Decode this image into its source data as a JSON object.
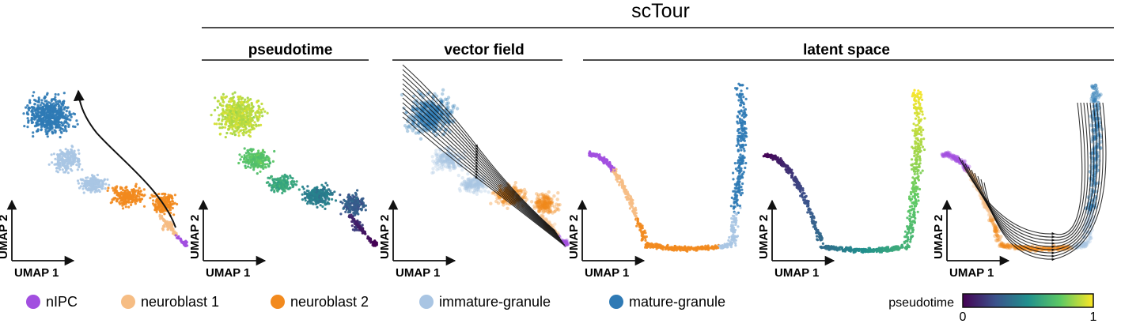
{
  "figure": {
    "title": "scTour",
    "sections": [
      "pseudotime",
      "vector field",
      "latent space"
    ],
    "axes": {
      "x": "UMAP 1",
      "y": "UMAP 2"
    }
  },
  "legend": {
    "items": [
      {
        "label": "nIPC",
        "color": "#a24fe0"
      },
      {
        "label": "neuroblast 1",
        "color": "#f6bd84"
      },
      {
        "label": "neuroblast 2",
        "color": "#f28a1e"
      },
      {
        "label": "immature-granule",
        "color": "#a9c5e3"
      },
      {
        "label": "mature-granule",
        "color": "#2f7ab5"
      }
    ]
  },
  "colorbar": {
    "label": "pseudotime",
    "min": "0",
    "max": "1",
    "colors": [
      "#440154",
      "#3b528b",
      "#21908d",
      "#5dc963",
      "#fde725"
    ]
  }
}
